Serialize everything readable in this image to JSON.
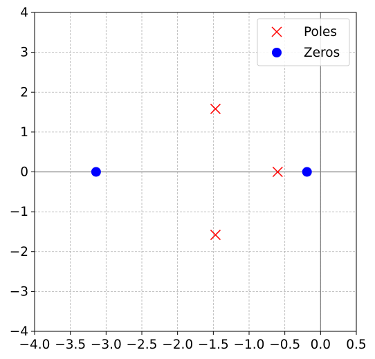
{
  "chart_data": {
    "type": "scatter",
    "title": "",
    "xlabel": "",
    "ylabel": "",
    "xlim": [
      -4.0,
      0.5
    ],
    "ylim": [
      -4,
      4
    ],
    "x_ticks": [
      -4.0,
      -3.5,
      -3.0,
      -2.5,
      -2.0,
      -1.5,
      -1.0,
      -0.5,
      0.0,
      0.5
    ],
    "x_tick_labels": [
      "−4.0",
      "−3.5",
      "−3.0",
      "−2.5",
      "−2.0",
      "−1.5",
      "−1.0",
      "−0.5",
      "0.0",
      "0.5"
    ],
    "y_ticks": [
      -4,
      -3,
      -2,
      -1,
      0,
      1,
      2,
      3,
      4
    ],
    "y_tick_labels": [
      "−4",
      "−3",
      "−2",
      "−1",
      "0",
      "1",
      "2",
      "3",
      "4"
    ],
    "grid": true,
    "grid_style": "dashed",
    "reference_axes": "zero lines drawn at x=0 and y=0",
    "legend_position": "top-right",
    "series": [
      {
        "name": "Poles",
        "marker": "x",
        "color": "#ff0000",
        "points": [
          {
            "x": -1.47,
            "y": 1.58
          },
          {
            "x": -1.47,
            "y": -1.58
          },
          {
            "x": -0.6,
            "y": 0.0
          }
        ]
      },
      {
        "name": "Zeros",
        "marker": "circle",
        "color": "#0000ff",
        "points": [
          {
            "x": -3.14,
            "y": 0.0
          },
          {
            "x": -0.19,
            "y": 0.0
          }
        ]
      }
    ]
  }
}
